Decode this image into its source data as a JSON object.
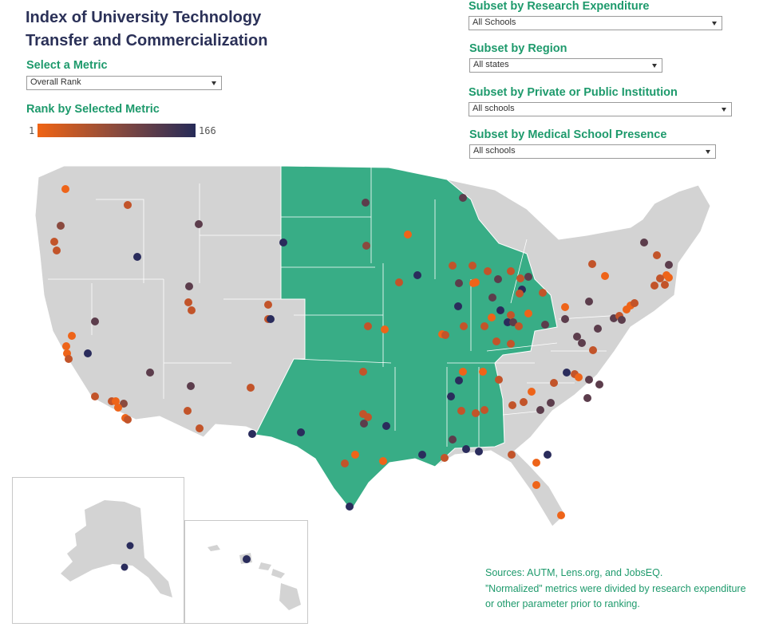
{
  "title": "Index of University Technology Transfer and Commercialization",
  "metric": {
    "label": "Select a Metric",
    "value": "Overall Rank"
  },
  "legend": {
    "label": "Rank by Selected Metric",
    "min": "1",
    "max": "166",
    "colors": [
      "#f06414",
      "#8a4b3e",
      "#262b58"
    ]
  },
  "filters": [
    {
      "label": "Subset by Research Expenditure",
      "value": "All Schools"
    },
    {
      "label": "Subset by Region",
      "value": "All states"
    },
    {
      "label": "Subset by Private or Public Institution",
      "value": "All schools"
    },
    {
      "label": "Subset by Medical School Presence",
      "value": "All schools"
    }
  ],
  "map": {
    "highlighted_region_color": "#38ad86",
    "other_states_color": "#d3d3d3",
    "dot_colors": [
      "#ee6419",
      "#c2542a",
      "#8a4a3f",
      "#5c3d4c",
      "#2a2c5c"
    ]
  },
  "sources": {
    "line1": "Sources: AUTM, Lens.org, and JobsEQ.",
    "line2": "”Normalized”  metrics were divided by research expenditure or other parameter prior to ranking."
  }
}
